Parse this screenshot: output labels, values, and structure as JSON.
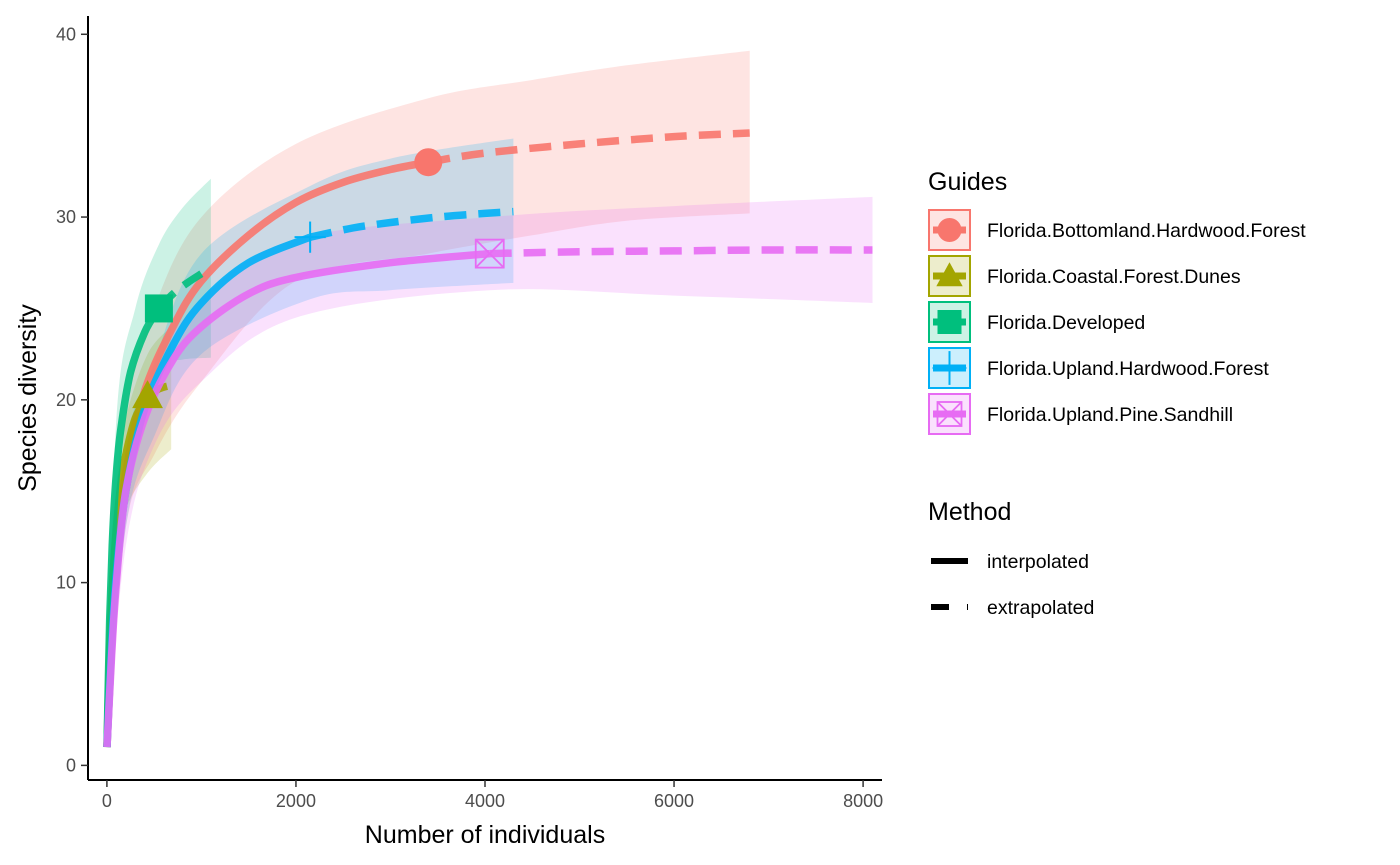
{
  "chart_data": {
    "type": "line",
    "title": "",
    "xlabel": "Number of individuals",
    "ylabel": "Species diversity",
    "xlim": [
      -200,
      8200
    ],
    "ylim": [
      -0.8,
      41
    ],
    "xticks": [
      0,
      2000,
      4000,
      6000,
      8000
    ],
    "yticks": [
      0,
      10,
      20,
      30,
      40
    ],
    "grid": false,
    "legend_position": "right",
    "legends": [
      {
        "title": "Guides",
        "entries": [
          "Florida.Bottomland.Hardwood.Forest",
          "Florida.Coastal.Forest.Dunes",
          "Florida.Developed",
          "Florida.Upland.Hardwood.Forest",
          "Florida.Upland.Pine.Sandhill"
        ]
      },
      {
        "title": "Method",
        "entries": [
          "interpolated",
          "extrapolated"
        ]
      }
    ],
    "series": [
      {
        "name": "Florida.Bottomland.Hardwood.Forest",
        "color": "#F8766D",
        "marker": "circle",
        "observed": {
          "x": 3400,
          "y": 33.0
        },
        "interpolated": {
          "x": [
            1,
            50,
            100,
            200,
            400,
            700,
            1000,
            1500,
            2000,
            2500,
            3000,
            3400
          ],
          "y": [
            1,
            6.5,
            11,
            16,
            20.5,
            24,
            26.5,
            29,
            30.8,
            31.9,
            32.6,
            33.0
          ]
        },
        "extrapolated": {
          "x": [
            3400,
            4000,
            5000,
            6000,
            6800
          ],
          "y": [
            33.0,
            33.5,
            34.0,
            34.4,
            34.6
          ]
        },
        "ci_lower": {
          "x": [
            1,
            200,
            500,
            1000,
            2000,
            3400,
            4500,
            5500,
            6800
          ],
          "y": [
            1,
            13,
            17,
            21,
            26.5,
            28,
            29,
            29.8,
            30.2
          ]
        },
        "ci_upper": {
          "x": [
            1,
            200,
            500,
            1000,
            2000,
            3400,
            4500,
            5500,
            6800
          ],
          "y": [
            1,
            19,
            25,
            30,
            34,
            36.5,
            37.5,
            38.3,
            39.1
          ]
        }
      },
      {
        "name": "Florida.Coastal.Forest.Dunes",
        "color": "#A3A500",
        "marker": "triangle",
        "observed": {
          "x": 430,
          "y": 20.2
        },
        "interpolated": {
          "x": [
            1,
            30,
            60,
            100,
            150,
            200,
            300,
            430
          ],
          "y": [
            1,
            6.5,
            10,
            13,
            15.5,
            17,
            19,
            20.2
          ]
        },
        "extrapolated": {
          "x": [
            430,
            550,
            680
          ],
          "y": [
            20.2,
            20.6,
            20.8
          ]
        },
        "ci_lower": {
          "x": [
            1,
            100,
            200,
            430,
            680
          ],
          "y": [
            1,
            11,
            14,
            16,
            17.3
          ]
        },
        "ci_upper": {
          "x": [
            1,
            100,
            200,
            430,
            680
          ],
          "y": [
            1,
            15,
            19,
            22.5,
            24.0
          ]
        }
      },
      {
        "name": "Florida.Developed",
        "color": "#00BF7D",
        "marker": "square",
        "observed": {
          "x": 550,
          "y": 25.0
        },
        "interpolated": {
          "x": [
            1,
            30,
            60,
            100,
            150,
            250,
            400,
            550
          ],
          "y": [
            1,
            8,
            12.5,
            16,
            18.5,
            21.5,
            23.7,
            25.0
          ]
        },
        "extrapolated": {
          "x": [
            550,
            700,
            850,
            1000
          ],
          "y": [
            25.0,
            25.8,
            26.4,
            26.9
          ]
        },
        "ci_lower": {
          "x": [
            1,
            100,
            300,
            550,
            800,
            1100
          ],
          "y": [
            1,
            13,
            19,
            21.8,
            22.2,
            22.3
          ]
        },
        "ci_upper": {
          "x": [
            1,
            100,
            300,
            550,
            800,
            1100
          ],
          "y": [
            1,
            19,
            25,
            28.5,
            30.5,
            32.1
          ]
        }
      },
      {
        "name": "Florida.Upland.Hardwood.Forest",
        "color": "#00B0F6",
        "marker": "plus",
        "observed": {
          "x": 2150,
          "y": 28.9
        },
        "interpolated": {
          "x": [
            1,
            50,
            100,
            200,
            400,
            700,
            1000,
            1500,
            2150
          ],
          "y": [
            1,
            6.5,
            10.5,
            15,
            19.5,
            23,
            25.3,
            27.5,
            28.9
          ]
        },
        "extrapolated": {
          "x": [
            2150,
            2600,
            3000,
            3500,
            4000,
            4300
          ],
          "y": [
            28.9,
            29.4,
            29.7,
            30.0,
            30.2,
            30.3
          ]
        },
        "ci_lower": {
          "x": [
            1,
            200,
            500,
            1000,
            2150,
            3000,
            4300
          ],
          "y": [
            1,
            13,
            18,
            22.5,
            25.5,
            26.0,
            26.4
          ]
        },
        "ci_upper": {
          "x": [
            1,
            200,
            500,
            1000,
            2150,
            3000,
            4300
          ],
          "y": [
            1,
            17,
            22,
            28,
            31.7,
            33.2,
            34.3
          ]
        }
      },
      {
        "name": "Florida.Upland.Pine.Sandhill",
        "color": "#E76BF3",
        "marker": "square-x",
        "observed": {
          "x": 4050,
          "y": 28.0
        },
        "interpolated": {
          "x": [
            1,
            50,
            100,
            200,
            400,
            700,
            1000,
            1500,
            2000,
            3000,
            4050
          ],
          "y": [
            1,
            6,
            10,
            15,
            19,
            22.2,
            24,
            25.8,
            26.7,
            27.5,
            28.0
          ]
        },
        "extrapolated": {
          "x": [
            4050,
            5000,
            6000,
            7000,
            8100
          ],
          "y": [
            28.0,
            28.1,
            28.15,
            28.2,
            28.2
          ]
        },
        "ci_lower": {
          "x": [
            1,
            200,
            500,
            1000,
            2000,
            4050,
            6000,
            8100
          ],
          "y": [
            1,
            12,
            17.5,
            21,
            24.5,
            26.0,
            25.7,
            25.3
          ]
        },
        "ci_upper": {
          "x": [
            1,
            200,
            500,
            1000,
            2000,
            4050,
            6000,
            8100
          ],
          "y": [
            1,
            16,
            21.5,
            25.5,
            28.8,
            30.0,
            30.6,
            31.1
          ]
        }
      }
    ]
  }
}
